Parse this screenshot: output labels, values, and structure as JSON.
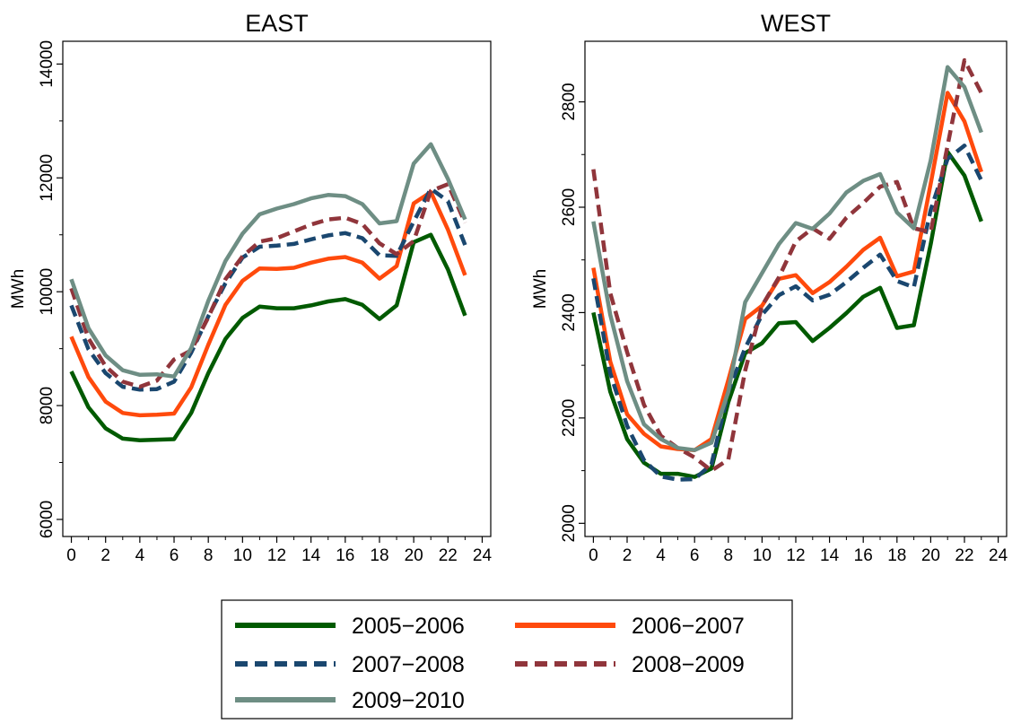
{
  "chart_data": [
    {
      "type": "line",
      "title": "EAST",
      "xlabel": "",
      "ylabel": "MWh",
      "xlim": [
        -0.5,
        24.5
      ],
      "ylim": [
        5700,
        14400
      ],
      "xticks": [
        0,
        2,
        4,
        6,
        8,
        10,
        12,
        14,
        16,
        18,
        20,
        22,
        24
      ],
      "yticks": [
        6000,
        8000,
        10000,
        12000,
        14000
      ],
      "x": [
        0,
        1,
        2,
        3,
        4,
        5,
        6,
        7,
        8,
        9,
        10,
        11,
        12,
        13,
        14,
        15,
        16,
        17,
        18,
        19,
        20,
        21,
        22,
        23
      ],
      "series": [
        {
          "name": "2005−2006",
          "color": "#005a00",
          "dash": "solid",
          "values": [
            8600,
            7970,
            7600,
            7420,
            7390,
            7400,
            7410,
            7870,
            8570,
            9170,
            9540,
            9740,
            9710,
            9710,
            9760,
            9830,
            9870,
            9770,
            9520,
            9760,
            10870,
            11000,
            10390,
            9580
          ]
        },
        {
          "name": "2006−2007",
          "color": "#ff4a0c",
          "dash": "solid",
          "values": [
            9210,
            8500,
            8070,
            7870,
            7830,
            7840,
            7860,
            8320,
            9070,
            9770,
            10190,
            10410,
            10400,
            10420,
            10510,
            10580,
            10610,
            10510,
            10230,
            10450,
            11550,
            11750,
            11090,
            10290
          ]
        },
        {
          "name": "2007−2008",
          "color": "#1a476f",
          "dash": "dash",
          "values": [
            9760,
            8990,
            8570,
            8330,
            8280,
            8290,
            8420,
            8930,
            9570,
            10150,
            10600,
            10790,
            10810,
            10840,
            10920,
            10990,
            11030,
            10940,
            10640,
            10630,
            11230,
            11810,
            11590,
            10820
          ]
        },
        {
          "name": "2008−2009",
          "color": "#90353b",
          "dash": "dash",
          "values": [
            10060,
            9180,
            8690,
            8420,
            8330,
            8440,
            8810,
            8970,
            9550,
            10220,
            10620,
            10880,
            10940,
            11060,
            11180,
            11270,
            11300,
            11190,
            10850,
            10660,
            10890,
            11770,
            11890,
            11210
          ]
        },
        {
          "name": "2009−2010",
          "color": "#6e8e84",
          "dash": "solid",
          "values": [
            10220,
            9360,
            8880,
            8620,
            8540,
            8550,
            8510,
            9010,
            9840,
            10540,
            11020,
            11360,
            11460,
            11540,
            11640,
            11700,
            11680,
            11540,
            11200,
            11240,
            12250,
            12590,
            11980,
            11270
          ]
        }
      ]
    },
    {
      "type": "line",
      "title": "WEST",
      "xlabel": "",
      "ylabel": "MWh",
      "xlim": [
        -0.5,
        24.5
      ],
      "ylim": [
        1975,
        2915
      ],
      "xticks": [
        0,
        2,
        4,
        6,
        8,
        10,
        12,
        14,
        16,
        18,
        20,
        22,
        24
      ],
      "yticks": [
        2000,
        2200,
        2400,
        2600,
        2800
      ],
      "x": [
        0,
        1,
        2,
        3,
        4,
        5,
        6,
        7,
        8,
        9,
        10,
        11,
        12,
        13,
        14,
        15,
        16,
        17,
        18,
        19,
        20,
        21,
        22,
        23
      ],
      "series": [
        {
          "name": "2005−2006",
          "color": "#005a00",
          "dash": "solid",
          "values": [
            2400,
            2250,
            2160,
            2115,
            2094,
            2094,
            2088,
            2104,
            2230,
            2323,
            2342,
            2380,
            2382,
            2346,
            2371,
            2399,
            2430,
            2447,
            2371,
            2376,
            2530,
            2705,
            2660,
            2573
          ]
        },
        {
          "name": "2006−2007",
          "color": "#ff4a0c",
          "dash": "solid",
          "values": [
            2485,
            2307,
            2207,
            2170,
            2146,
            2141,
            2139,
            2160,
            2272,
            2388,
            2413,
            2464,
            2471,
            2437,
            2458,
            2487,
            2519,
            2542,
            2469,
            2478,
            2645,
            2817,
            2763,
            2667
          ]
        },
        {
          "name": "2007−2008",
          "color": "#1a476f",
          "dash": "dash",
          "values": [
            2465,
            2285,
            2185,
            2120,
            2089,
            2083,
            2084,
            2112,
            2250,
            2333,
            2396,
            2433,
            2450,
            2423,
            2434,
            2458,
            2485,
            2510,
            2460,
            2448,
            2595,
            2692,
            2717,
            2651
          ]
        },
        {
          "name": "2008−2009",
          "color": "#90353b",
          "dash": "dash",
          "values": [
            2672,
            2437,
            2325,
            2225,
            2166,
            2143,
            2125,
            2100,
            2121,
            2290,
            2413,
            2467,
            2535,
            2560,
            2540,
            2580,
            2608,
            2639,
            2648,
            2560,
            2553,
            2717,
            2879,
            2817
          ]
        },
        {
          "name": "2009−2010",
          "color": "#6e8e84",
          "dash": "solid",
          "values": [
            2573,
            2396,
            2270,
            2188,
            2160,
            2143,
            2139,
            2153,
            2250,
            2420,
            2475,
            2530,
            2570,
            2559,
            2588,
            2628,
            2650,
            2663,
            2590,
            2560,
            2689,
            2866,
            2828,
            2742
          ]
        }
      ]
    }
  ],
  "legend": {
    "items": [
      "2005−2006",
      "2006−2007",
      "2007−2008",
      "2008−2009",
      "2009−2010"
    ]
  }
}
